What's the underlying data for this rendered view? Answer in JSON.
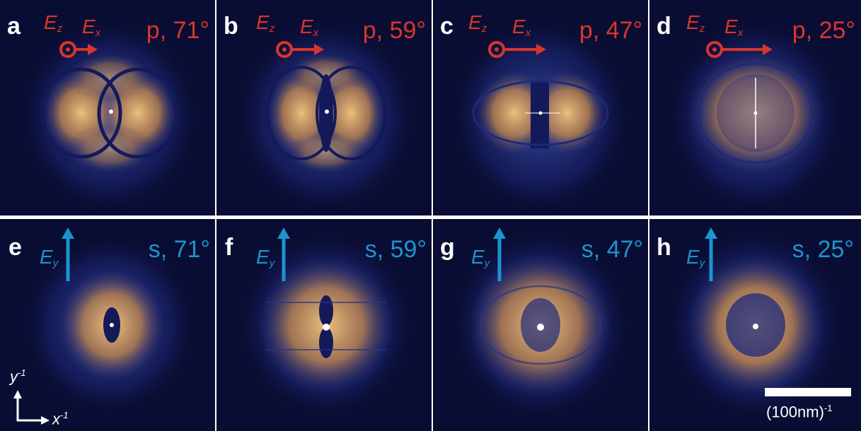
{
  "panels": [
    {
      "letter": "a",
      "label": "p, 71°",
      "pol": "p"
    },
    {
      "letter": "b",
      "label": "p, 59°",
      "pol": "p"
    },
    {
      "letter": "c",
      "label": "p, 47°",
      "pol": "p"
    },
    {
      "letter": "d",
      "label": "p, 25°",
      "pol": "p"
    },
    {
      "letter": "e",
      "label": "s, 71°",
      "pol": "s"
    },
    {
      "letter": "f",
      "label": "s, 59°",
      "pol": "s"
    },
    {
      "letter": "g",
      "label": "s, 47°",
      "pol": "s"
    },
    {
      "letter": "h",
      "label": "s, 25°",
      "pol": "s"
    }
  ],
  "field_labels": {
    "ez": "E",
    "ez_sub": "z",
    "ex": "E",
    "ex_sub": "x",
    "ey": "E",
    "ey_sub": "y"
  },
  "axes": {
    "y": "y",
    "x": "x",
    "exp": "-1"
  },
  "scale_bar": {
    "label": "(100nm)",
    "exp": "-1"
  },
  "colors": {
    "p_polarization": "#d8362a",
    "s_polarization": "#1b94cf",
    "background": "#0a0d33",
    "intensity": "#f2b763"
  }
}
